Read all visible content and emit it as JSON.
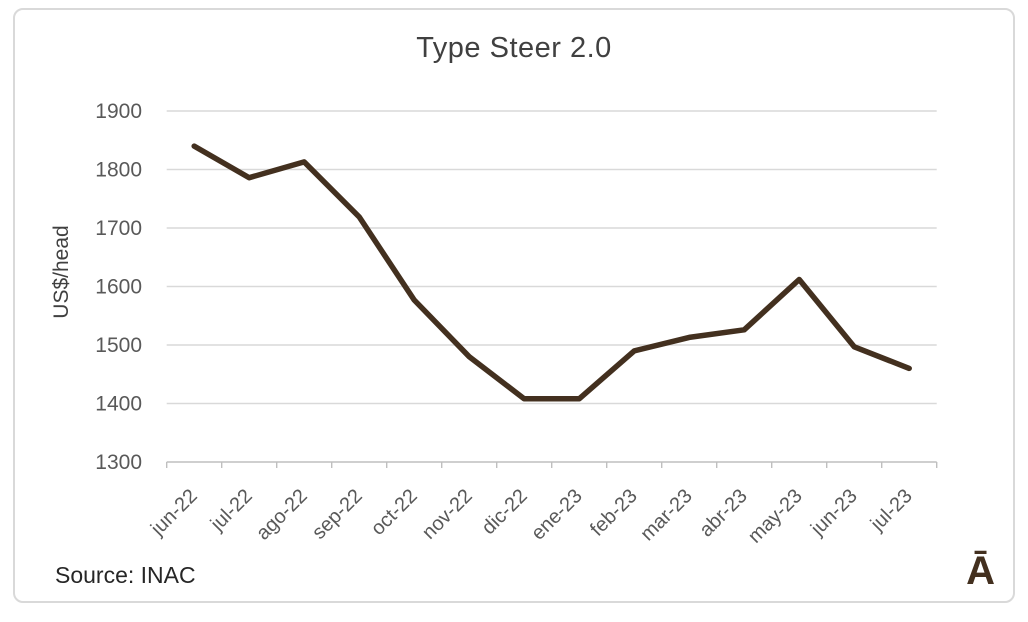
{
  "chart_data": {
    "type": "line",
    "title": "Type Steer 2.0",
    "xlabel": "",
    "ylabel": "US$/head",
    "categories": [
      "jun-22",
      "jul-22",
      "ago-22",
      "sep-22",
      "oct-22",
      "nov-22",
      "dic-22",
      "ene-23",
      "feb-23",
      "mar-23",
      "abr-23",
      "may-23",
      "jun-23",
      "jul-23"
    ],
    "values": [
      1840,
      1786,
      1813,
      1719,
      1577,
      1480,
      1408,
      1408,
      1490,
      1513,
      1526,
      1612,
      1497,
      1460
    ],
    "ylim": [
      1300,
      1900
    ],
    "ytick_step": 100,
    "grid": "horizontal",
    "legend": "none",
    "x_label_rotation_deg": 45
  },
  "footer": {
    "source": "Source: INAC",
    "logo": "Ā"
  },
  "colors": {
    "line": "#43301f",
    "title_text": "#404040",
    "axis_text": "#595959",
    "ylabel_text": "#404040",
    "gridline": "#d9d9d9",
    "axis_line": "#bfbfbf",
    "frame_border": "#d9d9d9",
    "source_text": "#262626",
    "logo": "#43301f"
  }
}
